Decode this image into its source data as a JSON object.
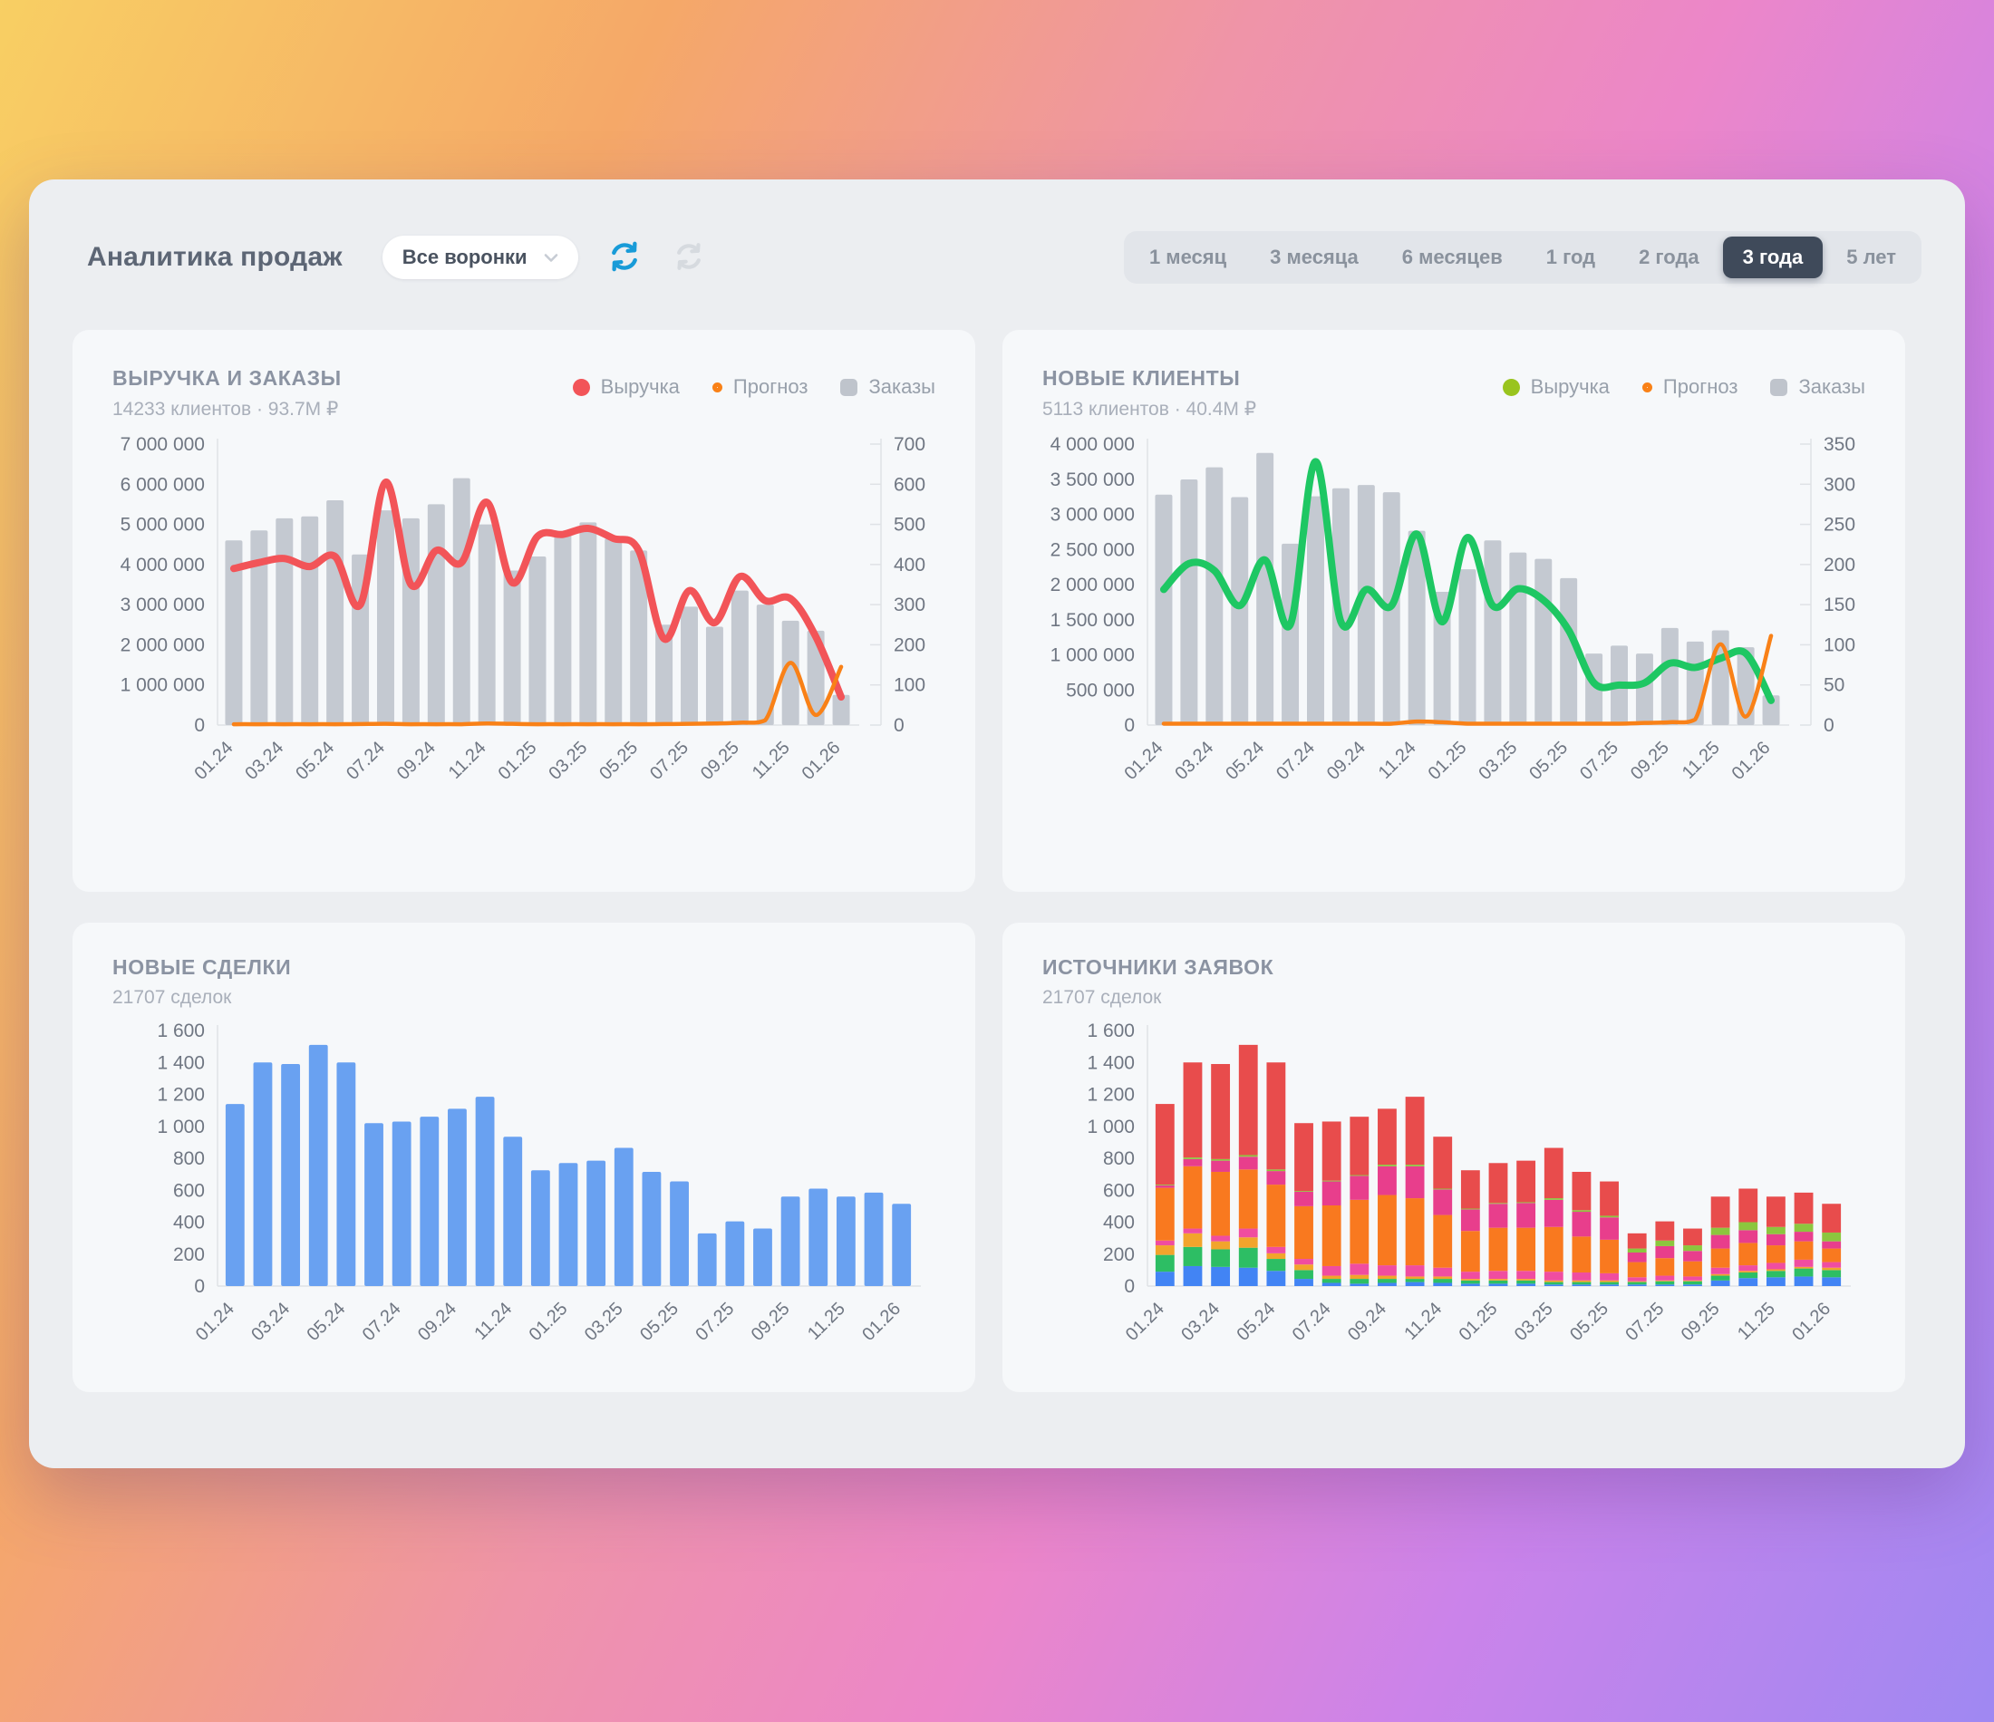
{
  "page": {
    "title": "Аналитика продаж"
  },
  "header": {
    "funnel_selector": {
      "label": "Все воронки"
    },
    "time_ranges": [
      {
        "label": "1 месяц",
        "selected": false
      },
      {
        "label": "3 месяца",
        "selected": false
      },
      {
        "label": "6 месяцев",
        "selected": false
      },
      {
        "label": "1 год",
        "selected": false
      },
      {
        "label": "2 года",
        "selected": false
      },
      {
        "label": "3 года",
        "selected": true
      },
      {
        "label": "5 лет",
        "selected": false
      }
    ]
  },
  "chart_data": [
    {
      "type": "bar+line",
      "title": "ВЫРУЧКА И ЗАКАЗЫ",
      "subtitle": "14233 клиентов · 93.7M ₽",
      "legend": [
        {
          "label": "Выручка",
          "color": "#f25458",
          "shape": "dot"
        },
        {
          "label": "Прогноз",
          "color": "#f98117",
          "shape": "ring"
        },
        {
          "label": "Заказы",
          "color": "#bfc4cc",
          "shape": "square"
        }
      ],
      "x_labels": [
        "01.24",
        "03.24",
        "05.24",
        "07.24",
        "09.24",
        "11.24",
        "01.25",
        "03.25",
        "05.25",
        "07.25",
        "09.25",
        "11.25",
        "01.26"
      ],
      "left_axis": {
        "min": 0,
        "max": 7000000,
        "step": 1000000
      },
      "right_axis": {
        "min": 0,
        "max": 700,
        "step": 100
      },
      "bars": {
        "name": "Заказы",
        "axis": "right",
        "color": "#c4c9d1",
        "values": [
          460,
          485,
          515,
          520,
          560,
          425,
          535,
          515,
          550,
          615,
          500,
          385,
          420,
          475,
          505,
          465,
          435,
          250,
          295,
          245,
          335,
          300,
          260,
          235,
          75
        ]
      },
      "lines": [
        {
          "name": "Выручка",
          "axis": "left",
          "color": "#f25458",
          "width": 8,
          "values": [
            3900000,
            4050000,
            4150000,
            3950000,
            4200000,
            3000000,
            6050000,
            3500000,
            4350000,
            4050000,
            5550000,
            3550000,
            4700000,
            4750000,
            4900000,
            4650000,
            4350000,
            2150000,
            3350000,
            2550000,
            3700000,
            3100000,
            3150000,
            2200000,
            700000
          ]
        },
        {
          "name": "Прогноз",
          "axis": "left",
          "color": "#f98117",
          "width": 4.5,
          "values": [
            20000,
            20000,
            20000,
            20000,
            20000,
            25000,
            30000,
            20000,
            20000,
            20000,
            40000,
            30000,
            20000,
            20000,
            20000,
            20000,
            20000,
            25000,
            30000,
            40000,
            60000,
            120000,
            1550000,
            250000,
            1450000
          ]
        }
      ]
    },
    {
      "type": "bar+line",
      "title": "НОВЫЕ КЛИЕНТЫ",
      "subtitle": "5113 клиентов · 40.4M ₽",
      "legend": [
        {
          "label": "Выручка",
          "color": "#99c41e",
          "shape": "dot"
        },
        {
          "label": "Прогноз",
          "color": "#f98117",
          "shape": "ring"
        },
        {
          "label": "Заказы",
          "color": "#bfc4cc",
          "shape": "square"
        }
      ],
      "x_labels": [
        "01.24",
        "03.24",
        "05.24",
        "07.24",
        "09.24",
        "11.24",
        "01.25",
        "03.25",
        "05.25",
        "07.25",
        "09.25",
        "11.25",
        "01.26"
      ],
      "left_axis": {
        "min": 0,
        "max": 4000000,
        "step": 500000
      },
      "right_axis": {
        "min": 0,
        "max": 350,
        "step": 50
      },
      "bars": {
        "name": "Заказы",
        "axis": "right",
        "color": "#c4c9d1",
        "values": [
          287,
          306,
          321,
          284,
          339,
          226,
          285,
          295,
          299,
          290,
          242,
          166,
          194,
          230,
          215,
          207,
          183,
          89,
          99,
          89,
          121,
          104,
          118,
          97,
          37
        ]
      },
      "lines": [
        {
          "name": "Выручка",
          "axis": "left",
          "color": "#1ec763",
          "width": 8,
          "values": [
            1930000,
            2300000,
            2200000,
            1700000,
            2350000,
            1430000,
            3750000,
            1470000,
            1930000,
            1700000,
            2720000,
            1470000,
            2670000,
            1700000,
            1940000,
            1780000,
            1350000,
            600000,
            570000,
            600000,
            880000,
            820000,
            950000,
            1020000,
            350000
          ]
        },
        {
          "name": "Прогноз",
          "axis": "left",
          "color": "#f98117",
          "width": 4.5,
          "values": [
            20000,
            20000,
            20000,
            20000,
            20000,
            20000,
            20000,
            20000,
            20000,
            20000,
            50000,
            40000,
            20000,
            20000,
            20000,
            20000,
            20000,
            20000,
            20000,
            30000,
            40000,
            80000,
            1150000,
            120000,
            1270000
          ]
        }
      ]
    },
    {
      "type": "bar",
      "title": "НОВЫЕ СДЕЛКИ",
      "subtitle": "21707 сделок",
      "x_labels": [
        "01.24",
        "03.24",
        "05.24",
        "07.24",
        "09.24",
        "11.24",
        "01.25",
        "03.25",
        "05.25",
        "07.25",
        "09.25",
        "11.25",
        "01.26"
      ],
      "left_axis": {
        "min": 0,
        "max": 1600,
        "step": 200
      },
      "bars": {
        "name": "Сделки",
        "axis": "left",
        "color": "#69a1f1",
        "values": [
          1140,
          1400,
          1390,
          1510,
          1400,
          1020,
          1030,
          1060,
          1110,
          1185,
          935,
          725,
          770,
          785,
          865,
          715,
          655,
          330,
          405,
          360,
          560,
          610,
          560,
          585,
          515
        ]
      }
    },
    {
      "type": "stacked-bar",
      "title": "ИСТОЧНИКИ ЗАЯВОК",
      "subtitle": "21707 сделок",
      "x_labels": [
        "01.24",
        "03.24",
        "05.24",
        "07.24",
        "09.24",
        "11.24",
        "01.25",
        "03.25",
        "05.25",
        "07.25",
        "09.25",
        "11.25",
        "01.26"
      ],
      "left_axis": {
        "min": 0,
        "max": 1600,
        "step": 200
      },
      "series": [
        {
          "name": "source-blue",
          "color": "#4284f4",
          "values": [
            90,
            125,
            120,
            115,
            95,
            45,
            20,
            15,
            20,
            25,
            20,
            15,
            15,
            15,
            10,
            10,
            10,
            10,
            10,
            10,
            35,
            50,
            55,
            60,
            55
          ]
        },
        {
          "name": "source-green",
          "color": "#2dbe64",
          "values": [
            105,
            120,
            110,
            125,
            75,
            55,
            25,
            30,
            25,
            20,
            25,
            20,
            20,
            20,
            15,
            15,
            15,
            15,
            20,
            20,
            30,
            35,
            40,
            50,
            45
          ]
        },
        {
          "name": "source-amber",
          "color": "#f2a42c",
          "values": [
            60,
            85,
            50,
            65,
            35,
            35,
            20,
            25,
            20,
            15,
            15,
            10,
            10,
            10,
            10,
            10,
            10,
            5,
            5,
            5,
            10,
            10,
            10,
            10,
            15
          ]
        },
        {
          "name": "source-pink",
          "color": "#f04da0",
          "values": [
            30,
            30,
            35,
            55,
            40,
            35,
            60,
            70,
            65,
            70,
            55,
            45,
            50,
            50,
            55,
            50,
            45,
            25,
            30,
            25,
            40,
            35,
            40,
            45,
            35
          ]
        },
        {
          "name": "source-orange",
          "color": "#f9791f",
          "values": [
            330,
            390,
            400,
            370,
            390,
            330,
            380,
            400,
            440,
            420,
            330,
            255,
            270,
            270,
            280,
            225,
            210,
            95,
            110,
            95,
            120,
            140,
            110,
            115,
            85
          ]
        },
        {
          "name": "source-magenta",
          "color": "#e83e8c",
          "values": [
            15,
            45,
            70,
            80,
            85,
            90,
            150,
            150,
            180,
            200,
            160,
            135,
            150,
            155,
            170,
            155,
            140,
            60,
            75,
            65,
            85,
            80,
            70,
            60,
            45
          ]
        },
        {
          "name": "source-lime",
          "color": "#8cc63e",
          "values": [
            5,
            10,
            10,
            10,
            10,
            5,
            5,
            5,
            10,
            10,
            5,
            5,
            5,
            5,
            10,
            10,
            10,
            25,
            35,
            35,
            45,
            50,
            45,
            50,
            55
          ]
        },
        {
          "name": "source-red",
          "color": "#e84c4c",
          "values": [
            505,
            595,
            595,
            690,
            670,
            425,
            370,
            365,
            350,
            425,
            325,
            240,
            250,
            260,
            315,
            240,
            215,
            95,
            120,
            105,
            195,
            210,
            190,
            195,
            180
          ]
        }
      ]
    }
  ]
}
